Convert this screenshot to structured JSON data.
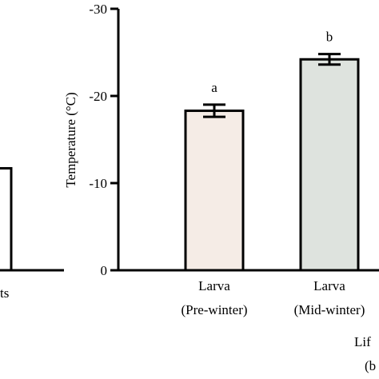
{
  "chart_data": {
    "type": "bar",
    "ylabel": "Temperature (°C)",
    "xlabel": "Lif",
    "xlabel_sub": "(b",
    "ylim": [
      0,
      -30
    ],
    "yticks": [
      0,
      -10,
      -20,
      -30
    ],
    "ytick_labels": [
      "0",
      "-10",
      "-20",
      "-30"
    ],
    "categories": [
      [
        "Larva",
        "(Pre-winter)"
      ],
      [
        "Larva",
        "(Mid-winter)"
      ]
    ],
    "values": [
      -18.3,
      -24.2
    ],
    "errors": [
      0.7,
      0.6
    ],
    "significance": [
      "a",
      "b"
    ],
    "bar_colors": [
      "#f5ece6",
      "#dee3de"
    ],
    "left_panel": {
      "tick_label_fragment": "ts",
      "bar_value_fraction": 0.39
    }
  }
}
